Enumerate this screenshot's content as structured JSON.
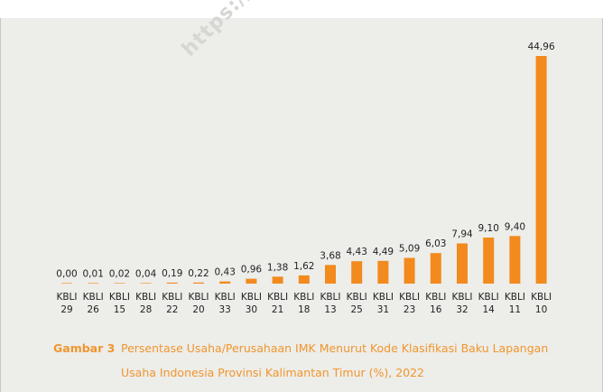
{
  "watermark": "https://ka",
  "caption": {
    "label": "Gambar 3",
    "text_line1": "Persentase Usaha/Perusahaan IMK Menurut Kode Klasifikasi Baku Lapangan",
    "text_line2": "Usaha Indonesia Provinsi Kalimantan Timur (%), 2022"
  },
  "chart_data": {
    "type": "bar",
    "categories": [
      "KBLI 29",
      "KBLI 26",
      "KBLI 15",
      "KBLI 28",
      "KBLI 22",
      "KBLI 20",
      "KBLI 33",
      "KBLI 30",
      "KBLI 21",
      "KBLI 18",
      "KBLI 13",
      "KBLI 25",
      "KBLI 31",
      "KBLI 23",
      "KBLI 16",
      "KBLI 32",
      "KBLI 14",
      "KBLI 11",
      "KBLI 10"
    ],
    "category_lines": [
      [
        "KBLI",
        "29"
      ],
      [
        "KBLI",
        "26"
      ],
      [
        "KBLI",
        "15"
      ],
      [
        "KBLI",
        "28"
      ],
      [
        "KBLI",
        "22"
      ],
      [
        "KBLI",
        "20"
      ],
      [
        "KBLI",
        "33"
      ],
      [
        "KBLI",
        "30"
      ],
      [
        "KBLI",
        "21"
      ],
      [
        "KBLI",
        "18"
      ],
      [
        "KBLI",
        "13"
      ],
      [
        "KBLI",
        "25"
      ],
      [
        "KBLI",
        "31"
      ],
      [
        "KBLI",
        "23"
      ],
      [
        "KBLI",
        "16"
      ],
      [
        "KBLI",
        "32"
      ],
      [
        "KBLI",
        "14"
      ],
      [
        "KBLI",
        "11"
      ],
      [
        "KBLI",
        "10"
      ]
    ],
    "values": [
      0.0,
      0.01,
      0.02,
      0.04,
      0.19,
      0.22,
      0.43,
      0.96,
      1.38,
      1.62,
      3.68,
      4.43,
      4.49,
      5.09,
      6.03,
      7.94,
      9.1,
      9.4,
      44.96
    ],
    "value_labels": [
      "0,00",
      "0,01",
      "0,02",
      "0,04",
      "0,19",
      "0,22",
      "0,43",
      "0,96",
      "1,38",
      "1,62",
      "3,68",
      "4,43",
      "4,49",
      "5,09",
      "6,03",
      "7,94",
      "9,10",
      "9,40",
      "44,96"
    ],
    "ylim": [
      0,
      44.96
    ],
    "title": "",
    "xlabel": "",
    "ylabel": "",
    "grid": false,
    "bar_color": "#f28a1e",
    "text_color": "#222222"
  }
}
